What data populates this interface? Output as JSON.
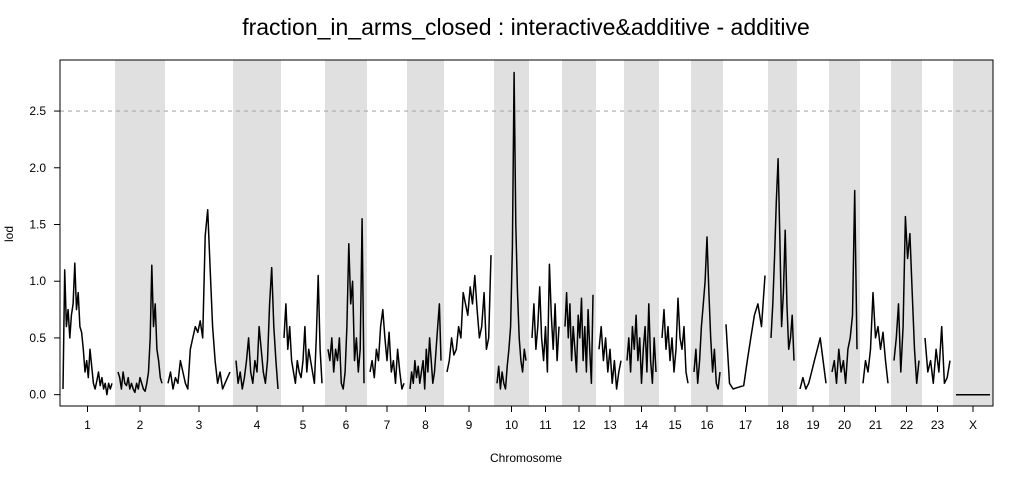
{
  "chart_data": {
    "type": "line",
    "title": "fraction_in_arms_closed : interactive&additive - additive",
    "xlabel": "Chromosome",
    "ylabel": "lod",
    "ylim": [
      -0.1,
      2.95
    ],
    "yticks": [
      "0.0",
      "0.5",
      "1.0",
      "1.5",
      "2.0",
      "2.5"
    ],
    "threshold": 2.5,
    "grid": false,
    "legend": "none",
    "colors": {
      "line": "#000000",
      "shade": "#e0e0e0",
      "threshold": "#aaaaaa"
    },
    "chromosomes": [
      {
        "label": "1",
        "shaded": false,
        "values": [
          0.05,
          1.1,
          0.6,
          0.75,
          0.5,
          0.7,
          0.8,
          1.16,
          0.75,
          0.9,
          0.6,
          0.55,
          0.4,
          0.2,
          0.3,
          0.15,
          0.4,
          0.25,
          0.1,
          0.05,
          0.12,
          0.2,
          0.08,
          0.15,
          0.05,
          0.1,
          0.0,
          0.1,
          0.05,
          0.1
        ]
      },
      {
        "label": "2",
        "shaded": true,
        "values": [
          0.2,
          0.15,
          0.05,
          0.2,
          0.1,
          0.08,
          0.15,
          0.05,
          0.1,
          0.05,
          0.02,
          0.1,
          0.05,
          0.15,
          0.1,
          0.05,
          0.03,
          0.1,
          0.2,
          0.5,
          1.14,
          0.6,
          0.8,
          0.4,
          0.3,
          0.15,
          0.1
        ]
      },
      {
        "label": "3",
        "shaded": false,
        "values": [
          0.1,
          0.2,
          0.05,
          0.15,
          0.1,
          0.3,
          0.2,
          0.1,
          0.05,
          0.4,
          0.5,
          0.6,
          0.55,
          0.65,
          0.5,
          1.4,
          1.63,
          1.1,
          0.6,
          0.3,
          0.1,
          0.2,
          0.05,
          0.1,
          0.15,
          0.2
        ]
      },
      {
        "label": "4",
        "shaded": true,
        "values": [
          0.3,
          0.1,
          0.2,
          0.05,
          0.15,
          0.3,
          0.5,
          0.2,
          0.1,
          0.3,
          0.2,
          0.6,
          0.4,
          0.2,
          0.1,
          0.3,
          0.8,
          1.12,
          0.6,
          0.3,
          0.05
        ]
      },
      {
        "label": "5",
        "shaded": false,
        "values": [
          0.5,
          0.8,
          0.4,
          0.6,
          0.3,
          0.2,
          0.1,
          0.3,
          0.2,
          0.15,
          0.3,
          0.6,
          0.2,
          0.4,
          0.3,
          0.2,
          0.1,
          0.5,
          1.05,
          0.4,
          0.1
        ]
      },
      {
        "label": "6",
        "shaded": true,
        "values": [
          0.4,
          0.3,
          0.5,
          0.2,
          0.4,
          0.3,
          0.5,
          0.1,
          0.05,
          0.2,
          0.6,
          1.33,
          0.8,
          1.0,
          0.3,
          0.5,
          0.2,
          0.4,
          1.55,
          0.1
        ]
      },
      {
        "label": "7",
        "shaded": false,
        "values": [
          0.2,
          0.3,
          0.15,
          0.4,
          0.3,
          0.6,
          0.75,
          0.5,
          0.3,
          0.55,
          0.2,
          0.3,
          0.1,
          0.4,
          0.2,
          0.05,
          0.1
        ]
      },
      {
        "label": "8",
        "shaded": true,
        "values": [
          0.05,
          0.2,
          0.1,
          0.3,
          0.15,
          0.25,
          0.1,
          0.2,
          0.3,
          0.05,
          0.4,
          0.2,
          0.5,
          0.3,
          0.1,
          0.2,
          0.4,
          0.6,
          0.8,
          0.3
        ]
      },
      {
        "label": "9",
        "shaded": false,
        "values": [
          0.2,
          0.3,
          0.5,
          0.35,
          0.4,
          0.6,
          0.5,
          0.9,
          0.8,
          0.7,
          0.95,
          0.8,
          1.05,
          0.75,
          0.5,
          0.6,
          0.9,
          0.4,
          0.5,
          1.23
        ]
      },
      {
        "label": "10",
        "shaded": true,
        "values": [
          0.1,
          0.25,
          0.05,
          0.2,
          0.1,
          0.05,
          0.25,
          0.4,
          0.6,
          1.3,
          2.84,
          1.5,
          0.9,
          0.5,
          0.3,
          0.2,
          0.4,
          0.3
        ]
      },
      {
        "label": "11",
        "shaded": false,
        "values": [
          0.5,
          0.8,
          0.4,
          0.6,
          0.95,
          0.5,
          0.3,
          0.6,
          0.2,
          1.15,
          0.7,
          0.4,
          0.8,
          0.3,
          0.6
        ]
      },
      {
        "label": "12",
        "shaded": true,
        "values": [
          0.6,
          0.9,
          0.5,
          0.8,
          0.3,
          0.6,
          0.4,
          0.2,
          0.7,
          0.5,
          0.85,
          0.3,
          0.6,
          0.2,
          0.75,
          0.4,
          0.1,
          0.88
        ]
      },
      {
        "label": "13",
        "shaded": false,
        "values": [
          0.4,
          0.6,
          0.3,
          0.5,
          0.2,
          0.4,
          0.1,
          0.3,
          0.05,
          0.2,
          0.3
        ]
      },
      {
        "label": "14",
        "shaded": true,
        "values": [
          0.3,
          0.5,
          0.2,
          0.6,
          0.4,
          0.7,
          0.3,
          0.5,
          0.1,
          0.4,
          0.6,
          0.2,
          0.8,
          0.3,
          0.1,
          0.5,
          0.2
        ]
      },
      {
        "label": "15",
        "shaded": false,
        "values": [
          0.5,
          0.75,
          0.4,
          0.6,
          0.3,
          0.5,
          0.2,
          0.4,
          0.85,
          0.5,
          0.4,
          0.6,
          0.2,
          0.1
        ]
      },
      {
        "label": "16",
        "shaded": true,
        "values": [
          0.2,
          0.4,
          0.1,
          0.3,
          0.6,
          0.8,
          1.0,
          1.39,
          0.9,
          0.5,
          0.2,
          0.4,
          0.1,
          0.05,
          0.2
        ]
      },
      {
        "label": "17",
        "shaded": false,
        "values": [
          0.62,
          0.1,
          0.05,
          0.06,
          0.07,
          0.08,
          0.3,
          0.5,
          0.7,
          0.8,
          0.6,
          1.05
        ]
      },
      {
        "label": "18",
        "shaded": true,
        "values": [
          0.5,
          0.8,
          1.2,
          1.7,
          2.08,
          1.4,
          0.6,
          0.9,
          1.45,
          0.8,
          0.4,
          0.5,
          0.7,
          0.3
        ]
      },
      {
        "label": "19",
        "shaded": false,
        "values": [
          0.05,
          0.15,
          0.05,
          0.1,
          0.2,
          0.3,
          0.4,
          0.5,
          0.3,
          0.1
        ]
      },
      {
        "label": "20",
        "shaded": true,
        "values": [
          0.2,
          0.3,
          0.1,
          0.4,
          0.2,
          0.3,
          0.1,
          0.4,
          0.5,
          0.7,
          1.8,
          0.4
        ]
      },
      {
        "label": "21",
        "shaded": false,
        "values": [
          0.1,
          0.3,
          0.2,
          0.4,
          0.9,
          0.5,
          0.6,
          0.4,
          0.55,
          0.3,
          0.1
        ]
      },
      {
        "label": "22",
        "shaded": true,
        "values": [
          0.3,
          0.5,
          0.8,
          0.2,
          0.6,
          1.57,
          1.2,
          1.42,
          0.9,
          0.4,
          0.1,
          0.3
        ]
      },
      {
        "label": "23",
        "shaded": false,
        "values": [
          0.5,
          0.2,
          0.3,
          0.1,
          0.4,
          0.2,
          0.6,
          0.1,
          0.15,
          0.3
        ]
      },
      {
        "label": "X",
        "shaded": true,
        "values": [
          0.0,
          0.0,
          0.0,
          0.0
        ]
      }
    ]
  }
}
